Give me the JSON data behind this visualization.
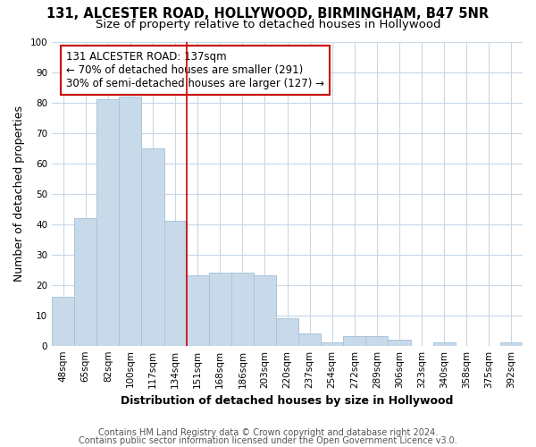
{
  "title1": "131, ALCESTER ROAD, HOLLYWOOD, BIRMINGHAM, B47 5NR",
  "title2": "Size of property relative to detached houses in Hollywood",
  "xlabel": "Distribution of detached houses by size in Hollywood",
  "ylabel": "Number of detached properties",
  "categories": [
    "48sqm",
    "65sqm",
    "82sqm",
    "100sqm",
    "117sqm",
    "134sqm",
    "151sqm",
    "168sqm",
    "186sqm",
    "203sqm",
    "220sqm",
    "237sqm",
    "254sqm",
    "272sqm",
    "289sqm",
    "306sqm",
    "323sqm",
    "340sqm",
    "358sqm",
    "375sqm",
    "392sqm"
  ],
  "values": [
    16,
    42,
    81,
    82,
    65,
    41,
    23,
    24,
    24,
    23,
    9,
    4,
    1,
    3,
    3,
    2,
    0,
    1,
    0,
    0,
    1
  ],
  "bar_color": "#c8daea",
  "bar_edge_color": "#a8c4da",
  "vline_index": 5,
  "vline_color": "#cc0000",
  "annotation_line1": "131 ALCESTER ROAD: 137sqm",
  "annotation_line2": "← 70% of detached houses are smaller (291)",
  "annotation_line3": "30% of semi-detached houses are larger (127) →",
  "annotation_box_color": "#cc0000",
  "ylim": [
    0,
    100
  ],
  "yticks": [
    0,
    10,
    20,
    30,
    40,
    50,
    60,
    70,
    80,
    90,
    100
  ],
  "footnote1": "Contains HM Land Registry data © Crown copyright and database right 2024.",
  "footnote2": "Contains public sector information licensed under the Open Government Licence v3.0.",
  "fig_bg_color": "#ffffff",
  "plot_bg_color": "#ffffff",
  "grid_color": "#c8d8e8",
  "title_fontsize": 10.5,
  "subtitle_fontsize": 9.5,
  "axis_label_fontsize": 9,
  "tick_fontsize": 7.5,
  "annotation_fontsize": 8.5,
  "footnote_fontsize": 7
}
